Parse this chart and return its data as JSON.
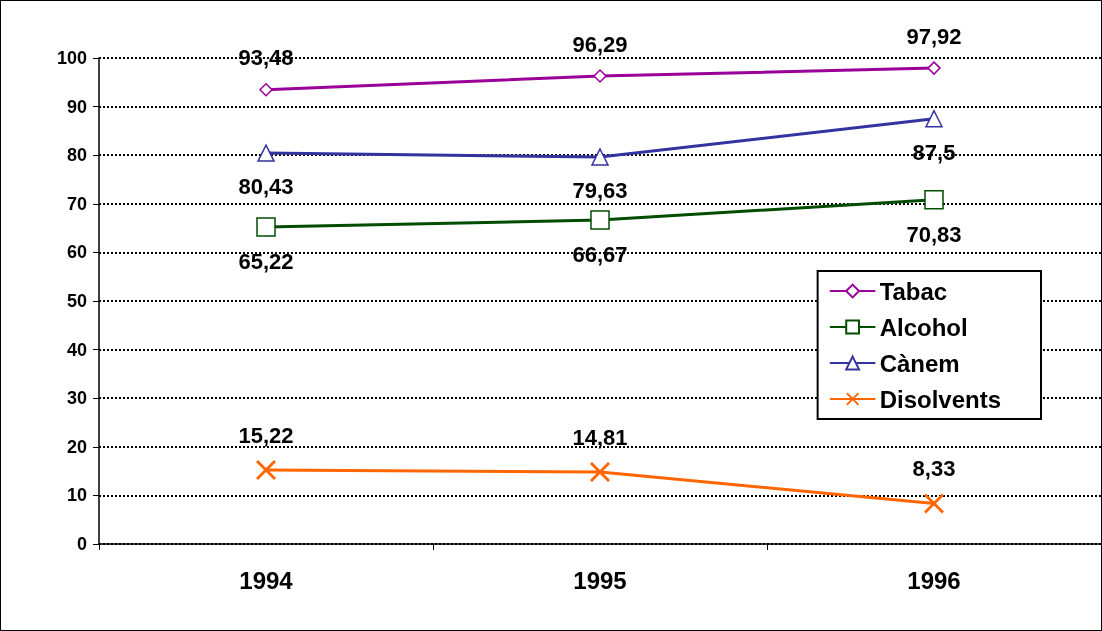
{
  "chart_data": {
    "type": "line",
    "categories": [
      "1994",
      "1995",
      "1996"
    ],
    "series": [
      {
        "name": "Tabac",
        "color": "#990099",
        "marker": "diamond",
        "values": [
          93.48,
          96.29,
          97.92
        ],
        "value_labels": [
          "93,48",
          "96,29",
          "97,92"
        ]
      },
      {
        "name": "Alcohol",
        "color": "#004d00",
        "marker": "square",
        "values": [
          65.22,
          66.67,
          70.83
        ],
        "value_labels": [
          "65,22",
          "66,67",
          "70,83"
        ]
      },
      {
        "name": "Cànem",
        "color": "#3333a0",
        "marker": "triangle",
        "values": [
          80.43,
          79.63,
          87.5
        ],
        "value_labels": [
          "80,43",
          "79,63",
          "87,5"
        ]
      },
      {
        "name": "Disolvents",
        "color": "#ff6600",
        "marker": "cross",
        "values": [
          15.22,
          14.81,
          8.33
        ],
        "value_labels": [
          "15,22",
          "14,81",
          "8,33"
        ]
      }
    ],
    "ylim": [
      0,
      100
    ],
    "yticks": [
      0,
      10,
      20,
      30,
      40,
      50,
      60,
      70,
      80,
      90,
      100
    ],
    "grid": "y",
    "legend": "right",
    "line_style": "solid"
  }
}
